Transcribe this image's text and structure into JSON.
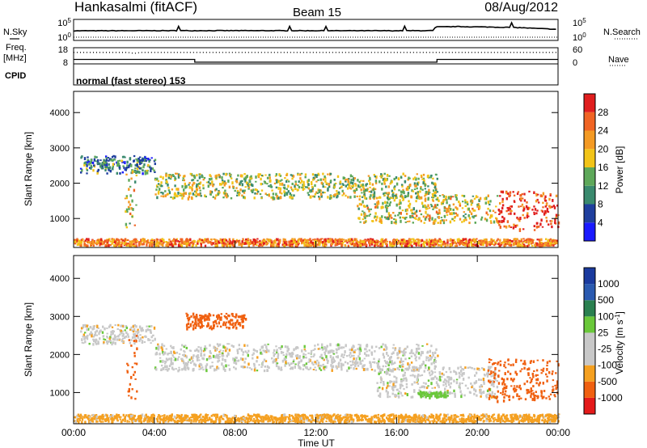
{
  "header": {
    "station": "Hankasalmi (fitACF)",
    "beam": "Beam 15",
    "date": "08/Aug/2012"
  },
  "strip_labels": {
    "nsky": "N.Sky",
    "freq": "Freq.",
    "freq_unit": "[MHz]",
    "cpid": "CPID",
    "nsearch": "N.Search",
    "nave": "Nave",
    "noise_top": "10^5",
    "noise_bottom": "10^0",
    "freq_top": "18",
    "freq_bottom": "8",
    "nave_top": "60",
    "nave_bottom": "0",
    "cpid_text": "normal (fast stereo) 153"
  },
  "colors": {
    "power": [
      "#1a1aff",
      "#1f3f9e",
      "#3a8a6e",
      "#5ea85a",
      "#f2c418",
      "#f49a24",
      "#f06424",
      "#e01e1e"
    ],
    "velocity": [
      "#e41a1a",
      "#f06010",
      "#f5a020",
      "#c8c8c8",
      "#c8c8c8",
      "#6ac83a",
      "#2a8050",
      "#2a5ab0",
      "#1a3a9e"
    ]
  },
  "chart_data": [
    {
      "type": "line",
      "title": "N.Sky / N.Search",
      "y_scale": "log",
      "ylim": [
        1,
        100000
      ],
      "ytick_labels": [
        "10^0",
        "10^5"
      ],
      "series": [
        {
          "name": "N.Sky",
          "x": [
            "00:00",
            "02:00",
            "04:00",
            "06:00",
            "08:00",
            "10:00",
            "12:00",
            "14:00",
            "16:00",
            "17:50",
            "18:00",
            "19:00",
            "20:00",
            "21:00",
            "22:00",
            "23:00",
            "24:00"
          ],
          "values": [
            300,
            320,
            330,
            340,
            340,
            330,
            330,
            320,
            320,
            340,
            5000,
            6000,
            5000,
            4000,
            3000,
            1500,
            800
          ]
        },
        {
          "name": "N.Search",
          "x": [
            "00:00",
            "24:00"
          ],
          "values": [
            200,
            200
          ]
        }
      ]
    },
    {
      "type": "line",
      "title": "Freq. / Nave",
      "ylim": [
        8,
        18
      ],
      "ytick_labels": [
        "8",
        "18"
      ],
      "y2lim": [
        0,
        60
      ],
      "y2tick_labels": [
        "0",
        "60"
      ],
      "series": [
        {
          "name": "Freq.",
          "x": [
            "00:00",
            "06:00",
            "06:00",
            "18:00",
            "18:00",
            "24:00"
          ],
          "values": [
            10.5,
            10.5,
            8.6,
            8.6,
            10.5,
            10.5
          ]
        },
        {
          "name": "Nave",
          "x": [
            "00:00",
            "02:40",
            "03:00",
            "03:20",
            "04:00",
            "24:00"
          ],
          "values": [
            44,
            44,
            40,
            44,
            44,
            44
          ]
        }
      ]
    },
    {
      "type": "heatmap",
      "title": "Power",
      "ylabel": "Slant Range [km]",
      "xlim": [
        "00:00",
        "24:00"
      ],
      "ylim": [
        180,
        4600
      ],
      "yticks": [
        1000,
        2000,
        3000,
        4000
      ],
      "colorbar": {
        "label": "Power [dB]",
        "ticks": [
          4,
          8,
          12,
          16,
          20,
          24,
          28
        ],
        "range": [
          0,
          32
        ]
      },
      "features": [
        {
          "t": [
            0.0,
            24.0
          ],
          "range_km": [
            250,
            450
          ],
          "db": 24
        },
        {
          "t": [
            0.3,
            4.0
          ],
          "range_km": [
            2300,
            2800
          ],
          "db": 10
        },
        {
          "t": [
            2.5,
            3.1
          ],
          "range_km": [
            700,
            2400
          ],
          "db": 18
        },
        {
          "t": [
            4.0,
            18.0
          ],
          "range_km": [
            1600,
            2300
          ],
          "db": 16
        },
        {
          "t": [
            14.0,
            21.0
          ],
          "range_km": [
            900,
            1700
          ],
          "db": 18
        },
        {
          "t": [
            21.0,
            24.0
          ],
          "range_km": [
            700,
            1800
          ],
          "db": 28
        }
      ]
    },
    {
      "type": "heatmap",
      "title": "Velocity",
      "ylabel": "Slant Range [km]",
      "xlabel": "Time UT",
      "xlim": [
        "00:00",
        "24:00"
      ],
      "ylim": [
        180,
        4600
      ],
      "yticks": [
        1000,
        2000,
        3000,
        4000
      ],
      "xtick_labels": [
        "00:00",
        "04:00",
        "08:00",
        "12:00",
        "16:00",
        "20:00",
        "00:00"
      ],
      "colorbar": {
        "label": "Velocity [m s^-1]",
        "tick_labels": [
          "1000",
          "500",
          "100",
          "25",
          "-25",
          "-100",
          "-500",
          "-1000"
        ]
      },
      "features": [
        {
          "t": [
            0.0,
            24.0
          ],
          "range_km": [
            250,
            450
          ],
          "v": -100
        },
        {
          "t": [
            0.3,
            4.0
          ],
          "range_km": [
            2300,
            2800
          ],
          "v": 0
        },
        {
          "t": [
            2.6,
            3.1
          ],
          "range_km": [
            800,
            2600
          ],
          "v": -500
        },
        {
          "t": [
            5.5,
            8.5
          ],
          "range_km": [
            2700,
            3100
          ],
          "v": -500
        },
        {
          "t": [
            4.0,
            18.0
          ],
          "range_km": [
            1600,
            2300
          ],
          "v": 0
        },
        {
          "t": [
            15.0,
            21.0
          ],
          "range_km": [
            900,
            1700
          ],
          "v": 0
        },
        {
          "t": [
            17.0,
            18.5
          ],
          "range_km": [
            900,
            1050
          ],
          "v": 100
        },
        {
          "t": [
            20.5,
            24.0
          ],
          "range_km": [
            800,
            1900
          ],
          "v": -500
        }
      ]
    }
  ]
}
